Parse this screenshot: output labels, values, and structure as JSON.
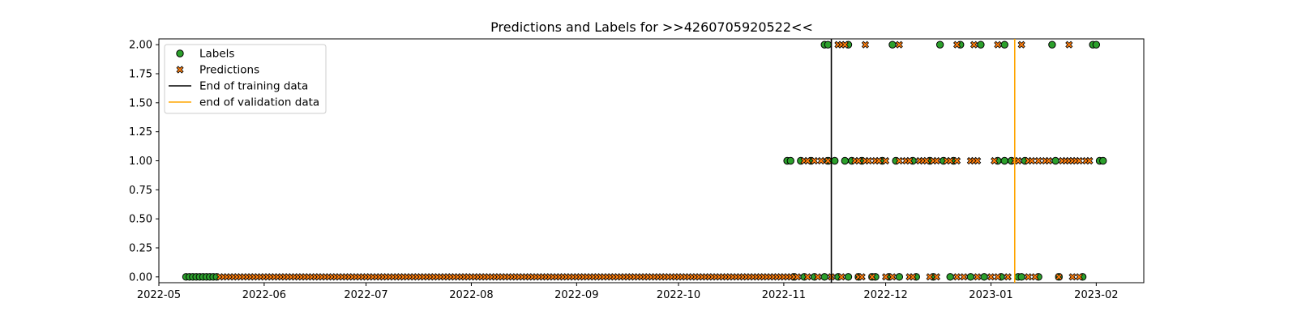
{
  "chart_data": {
    "type": "scatter",
    "title": "Predictions and Labels for >>4260705920522<<",
    "xlabel": "",
    "ylabel": "",
    "x_is_date": true,
    "xlim": [
      "2022-05-01",
      "2023-02-15"
    ],
    "ylim": [
      -0.05,
      2.05
    ],
    "x_ticks": [
      "2022-05-01",
      "2022-06-01",
      "2022-07-01",
      "2022-08-01",
      "2022-09-01",
      "2022-10-01",
      "2022-11-01",
      "2022-12-01",
      "2023-01-01",
      "2023-02-01"
    ],
    "x_tick_labels": [
      "2022-05",
      "2022-06",
      "2022-07",
      "2022-08",
      "2022-09",
      "2022-10",
      "2022-11",
      "2022-12",
      "2023-01",
      "2023-02"
    ],
    "y_ticks": [
      0,
      0.25,
      0.5,
      0.75,
      1.0,
      1.25,
      1.5,
      1.75,
      2.0
    ],
    "y_tick_labels": [
      "0.00",
      "0.25",
      "0.50",
      "0.75",
      "1.00",
      "1.25",
      "1.50",
      "1.75",
      "2.00"
    ],
    "grid": false,
    "legend_position": "top-left",
    "series": [
      {
        "name": "Labels",
        "marker": "circle",
        "color": "#2ca02c",
        "edge_color": "#000000",
        "points": [
          {
            "x": "2022-05-09",
            "y": 0
          },
          {
            "x": "2022-05-10",
            "y": 0
          },
          {
            "x": "2022-05-11",
            "y": 0
          },
          {
            "x": "2022-05-12",
            "y": 0
          },
          {
            "x": "2022-05-13",
            "y": 0
          },
          {
            "x": "2022-05-14",
            "y": 0
          },
          {
            "x": "2022-05-15",
            "y": 0
          },
          {
            "x": "2022-05-16",
            "y": 0
          },
          {
            "x": "2022-05-17",
            "y": 0
          },
          {
            "x": "2022-05-18",
            "y": 0
          },
          {
            "x": "2022-11-04",
            "y": 0
          },
          {
            "x": "2022-11-07",
            "y": 0
          },
          {
            "x": "2022-11-10",
            "y": 0
          },
          {
            "x": "2022-11-13",
            "y": 0
          },
          {
            "x": "2022-11-17",
            "y": 0
          },
          {
            "x": "2022-11-20",
            "y": 0
          },
          {
            "x": "2022-11-23",
            "y": 0
          },
          {
            "x": "2022-11-27",
            "y": 0
          },
          {
            "x": "2022-11-28",
            "y": 0
          },
          {
            "x": "2022-12-02",
            "y": 0
          },
          {
            "x": "2022-12-05",
            "y": 0
          },
          {
            "x": "2022-12-10",
            "y": 0
          },
          {
            "x": "2022-12-15",
            "y": 0
          },
          {
            "x": "2022-12-20",
            "y": 0
          },
          {
            "x": "2022-12-26",
            "y": 0
          },
          {
            "x": "2022-12-30",
            "y": 0
          },
          {
            "x": "2023-01-04",
            "y": 0
          },
          {
            "x": "2023-01-09",
            "y": 0
          },
          {
            "x": "2023-01-10",
            "y": 0
          },
          {
            "x": "2023-01-15",
            "y": 0
          },
          {
            "x": "2023-01-21",
            "y": 0
          },
          {
            "x": "2023-01-28",
            "y": 0
          },
          {
            "x": "2022-11-02",
            "y": 1
          },
          {
            "x": "2022-11-03",
            "y": 1
          },
          {
            "x": "2022-11-06",
            "y": 1
          },
          {
            "x": "2022-11-09",
            "y": 1
          },
          {
            "x": "2022-11-14",
            "y": 1
          },
          {
            "x": "2022-11-16",
            "y": 1
          },
          {
            "x": "2022-11-19",
            "y": 1
          },
          {
            "x": "2022-11-21",
            "y": 1
          },
          {
            "x": "2022-11-24",
            "y": 1
          },
          {
            "x": "2022-11-30",
            "y": 1
          },
          {
            "x": "2022-12-04",
            "y": 1
          },
          {
            "x": "2022-12-09",
            "y": 1
          },
          {
            "x": "2022-12-14",
            "y": 1
          },
          {
            "x": "2022-12-18",
            "y": 1
          },
          {
            "x": "2022-12-21",
            "y": 1
          },
          {
            "x": "2023-01-03",
            "y": 1
          },
          {
            "x": "2023-01-05",
            "y": 1
          },
          {
            "x": "2023-01-07",
            "y": 1
          },
          {
            "x": "2023-01-11",
            "y": 1
          },
          {
            "x": "2023-01-20",
            "y": 1
          },
          {
            "x": "2023-02-02",
            "y": 1
          },
          {
            "x": "2023-02-03",
            "y": 1
          },
          {
            "x": "2022-11-13",
            "y": 2
          },
          {
            "x": "2022-11-14",
            "y": 2
          },
          {
            "x": "2022-11-20",
            "y": 2
          },
          {
            "x": "2022-12-03",
            "y": 2
          },
          {
            "x": "2022-12-17",
            "y": 2
          },
          {
            "x": "2022-12-23",
            "y": 2
          },
          {
            "x": "2022-12-29",
            "y": 2
          },
          {
            "x": "2023-01-05",
            "y": 2
          },
          {
            "x": "2023-01-19",
            "y": 2
          },
          {
            "x": "2023-01-31",
            "y": 2
          },
          {
            "x": "2023-02-01",
            "y": 2
          }
        ]
      },
      {
        "name": "Predictions",
        "marker": "x",
        "color": "#ff7f0e",
        "edge_color": "#000000",
        "points": [],
        "dense_runs": [
          {
            "start": "2022-05-19",
            "end": "2022-11-04",
            "y": 0
          }
        ],
        "extra_points": [
          {
            "x": "2022-11-05",
            "y": 0
          },
          {
            "x": "2022-11-08",
            "y": 0
          },
          {
            "x": "2022-11-11",
            "y": 0
          },
          {
            "x": "2022-11-15",
            "y": 0
          },
          {
            "x": "2022-11-18",
            "y": 0
          },
          {
            "x": "2022-11-23",
            "y": 0
          },
          {
            "x": "2022-11-24",
            "y": 0
          },
          {
            "x": "2022-11-27",
            "y": 0
          },
          {
            "x": "2022-12-01",
            "y": 0
          },
          {
            "x": "2022-12-03",
            "y": 0
          },
          {
            "x": "2022-12-08",
            "y": 0
          },
          {
            "x": "2022-12-09",
            "y": 0
          },
          {
            "x": "2022-12-14",
            "y": 0
          },
          {
            "x": "2022-12-16",
            "y": 0
          },
          {
            "x": "2022-12-22",
            "y": 0
          },
          {
            "x": "2022-12-24",
            "y": 0
          },
          {
            "x": "2022-12-28",
            "y": 0
          },
          {
            "x": "2023-01-01",
            "y": 0
          },
          {
            "x": "2023-01-03",
            "y": 0
          },
          {
            "x": "2023-01-06",
            "y": 0
          },
          {
            "x": "2023-01-12",
            "y": 0
          },
          {
            "x": "2023-01-14",
            "y": 0
          },
          {
            "x": "2023-01-21",
            "y": 0
          },
          {
            "x": "2023-01-25",
            "y": 0
          },
          {
            "x": "2023-01-27",
            "y": 0
          },
          {
            "x": "2022-11-07",
            "y": 1
          },
          {
            "x": "2022-11-08",
            "y": 1
          },
          {
            "x": "2022-11-10",
            "y": 1
          },
          {
            "x": "2022-11-12",
            "y": 1
          },
          {
            "x": "2022-11-14",
            "y": 1
          },
          {
            "x": "2022-11-22",
            "y": 1
          },
          {
            "x": "2022-11-23",
            "y": 1
          },
          {
            "x": "2022-11-25",
            "y": 1
          },
          {
            "x": "2022-11-26",
            "y": 1
          },
          {
            "x": "2022-11-28",
            "y": 1
          },
          {
            "x": "2022-11-29",
            "y": 1
          },
          {
            "x": "2022-12-01",
            "y": 1
          },
          {
            "x": "2022-12-05",
            "y": 1
          },
          {
            "x": "2022-12-07",
            "y": 1
          },
          {
            "x": "2022-12-08",
            "y": 1
          },
          {
            "x": "2022-12-11",
            "y": 1
          },
          {
            "x": "2022-12-12",
            "y": 1
          },
          {
            "x": "2022-12-13",
            "y": 1
          },
          {
            "x": "2022-12-15",
            "y": 1
          },
          {
            "x": "2022-12-16",
            "y": 1
          },
          {
            "x": "2022-12-19",
            "y": 1
          },
          {
            "x": "2022-12-20",
            "y": 1
          },
          {
            "x": "2022-12-22",
            "y": 1
          },
          {
            "x": "2022-12-26",
            "y": 1
          },
          {
            "x": "2022-12-27",
            "y": 1
          },
          {
            "x": "2022-12-28",
            "y": 1
          },
          {
            "x": "2023-01-02",
            "y": 1
          },
          {
            "x": "2023-01-08",
            "y": 1
          },
          {
            "x": "2023-01-09",
            "y": 1
          },
          {
            "x": "2023-01-12",
            "y": 1
          },
          {
            "x": "2023-01-13",
            "y": 1
          },
          {
            "x": "2023-01-15",
            "y": 1
          },
          {
            "x": "2023-01-17",
            "y": 1
          },
          {
            "x": "2023-01-18",
            "y": 1
          },
          {
            "x": "2023-01-22",
            "y": 1
          },
          {
            "x": "2023-01-23",
            "y": 1
          },
          {
            "x": "2023-01-24",
            "y": 1
          },
          {
            "x": "2023-01-25",
            "y": 1
          },
          {
            "x": "2023-01-26",
            "y": 1
          },
          {
            "x": "2023-01-27",
            "y": 1
          },
          {
            "x": "2023-01-29",
            "y": 1
          },
          {
            "x": "2023-01-30",
            "y": 1
          },
          {
            "x": "2022-11-17",
            "y": 2
          },
          {
            "x": "2022-11-18",
            "y": 2
          },
          {
            "x": "2022-11-19",
            "y": 2
          },
          {
            "x": "2022-11-25",
            "y": 2
          },
          {
            "x": "2022-12-05",
            "y": 2
          },
          {
            "x": "2022-12-22",
            "y": 2
          },
          {
            "x": "2022-12-27",
            "y": 2
          },
          {
            "x": "2023-01-03",
            "y": 2
          },
          {
            "x": "2023-01-10",
            "y": 2
          },
          {
            "x": "2023-01-24",
            "y": 2
          }
        ]
      }
    ],
    "vertical_lines": [
      {
        "name": "End of training data",
        "x": "2022-11-15",
        "color": "#000000"
      },
      {
        "name": "end of validation data",
        "x": "2023-01-08",
        "color": "#ffa500"
      }
    ]
  }
}
